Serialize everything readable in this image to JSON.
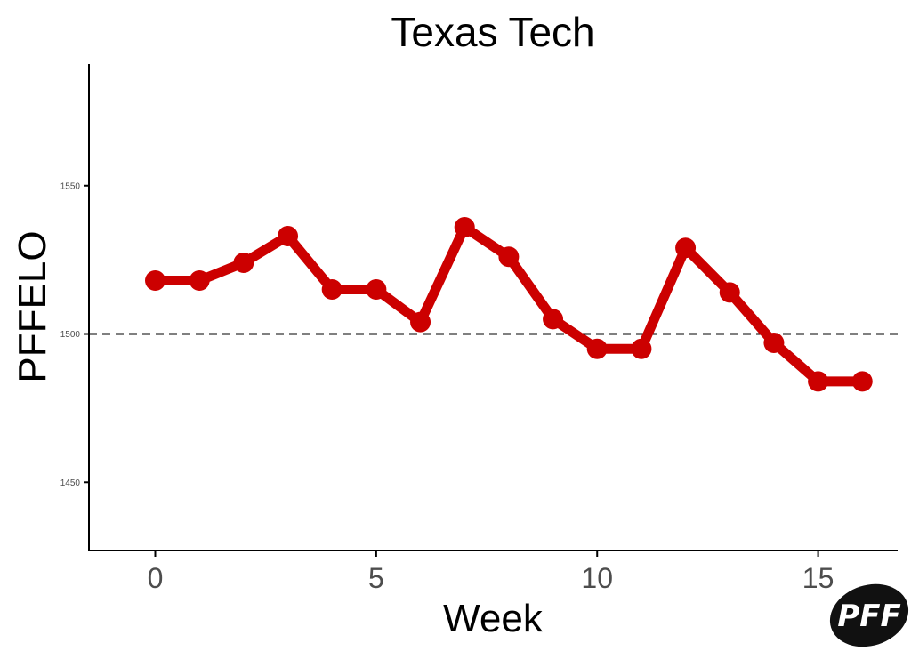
{
  "chart_data": {
    "type": "line",
    "title": "Texas Tech",
    "xlabel": "Week",
    "ylabel": "PFFELO",
    "x": [
      0,
      1,
      2,
      3,
      4,
      5,
      6,
      7,
      8,
      9,
      10,
      11,
      12,
      13,
      14,
      15,
      16
    ],
    "series": [
      {
        "values": [
          1518,
          1518,
          1524,
          1533,
          1515,
          1515,
          1504,
          1536,
          1526,
          1505,
          1495,
          1495,
          1529,
          1514,
          1497,
          1484,
          1484
        ],
        "color": "#cc0000"
      }
    ],
    "xlim": [
      -1.5,
      16.8
    ],
    "ylim": [
      1427,
      1591
    ],
    "x_ticks": [
      0,
      5,
      10,
      15
    ],
    "y_ticks": [
      1450,
      1500,
      1550
    ],
    "reference_line": {
      "y": 1500,
      "style": "dashed",
      "color": "#000000"
    },
    "grid": false
  },
  "logo": {
    "text": "PFF",
    "background": "#111111"
  }
}
